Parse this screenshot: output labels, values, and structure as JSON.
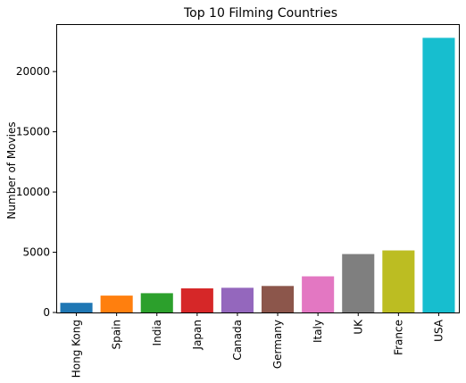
{
  "chart_data": {
    "type": "bar",
    "title": "Top 10 Filming Countries",
    "xlabel": "",
    "ylabel": "Number of Movies",
    "categories": [
      "Hong Kong",
      "Spain",
      "India",
      "Japan",
      "Canada",
      "Germany",
      "Italy",
      "UK",
      "France",
      "USA"
    ],
    "values": [
      800,
      1400,
      1600,
      2000,
      2050,
      2200,
      3000,
      4850,
      5150,
      22800
    ],
    "colors": [
      "#1f77b4",
      "#ff7f0e",
      "#2ca02c",
      "#d62728",
      "#9467bd",
      "#8c564b",
      "#e377c2",
      "#7f7f7f",
      "#bcbd22",
      "#17becf"
    ],
    "yticks": [
      0,
      5000,
      10000,
      15000,
      20000
    ],
    "ylim": [
      0,
      23940
    ],
    "grid": false,
    "legend": "none"
  }
}
